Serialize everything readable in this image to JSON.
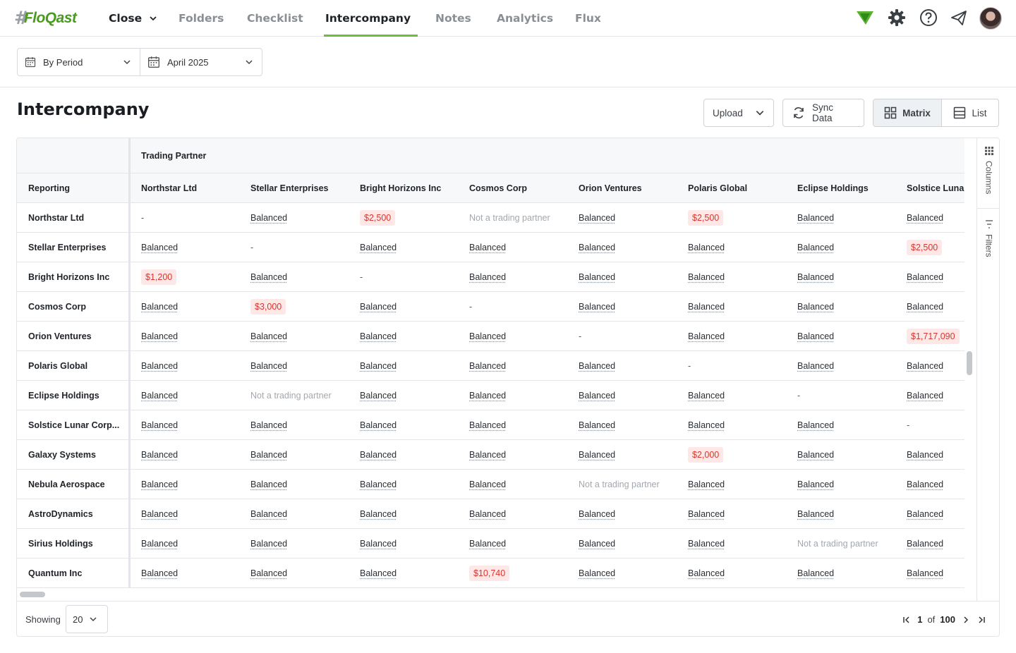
{
  "brand": {
    "hash": "#",
    "name": "FloQast"
  },
  "nav": {
    "tabs": [
      {
        "label": "Close",
        "id": "close"
      },
      {
        "label": "Folders",
        "id": "folders"
      },
      {
        "label": "Checklist",
        "id": "checklist"
      },
      {
        "label": "Intercompany",
        "id": "intercompany"
      },
      {
        "label": "Notes",
        "id": "notes"
      },
      {
        "label": "Analytics",
        "id": "analytics"
      },
      {
        "label": "Flux",
        "id": "flux"
      }
    ],
    "active": "Intercompany",
    "icons": [
      "floqast-ai-icon",
      "gear-icon",
      "help-icon",
      "send-icon",
      "avatar"
    ]
  },
  "filters": {
    "period_type": "By Period",
    "period": "April 2025"
  },
  "page": {
    "title": "Intercompany"
  },
  "toolbar": {
    "upload": "Upload",
    "sync": "Sync Data",
    "matrix": "Matrix",
    "list": "List",
    "active_view": "Matrix"
  },
  "grid": {
    "group_header": "Trading Partner",
    "row_header": "Reporting",
    "columns": [
      "Northstar Ltd",
      "Stellar Enterprises",
      "Bright Horizons Inc",
      "Cosmos Corp",
      "Orion Ventures",
      "Polaris Global",
      "Eclipse Holdings",
      "Solstice Lunar Corp..."
    ],
    "rows": [
      {
        "name": "Northstar Ltd",
        "cells": [
          "-",
          "Balanced",
          "$2,500",
          "Not a trading partner",
          "Balanced",
          "$2,500",
          "Balanced",
          "Balanced"
        ]
      },
      {
        "name": "Stellar Enterprises",
        "cells": [
          "Balanced",
          "-",
          "Balanced",
          "Balanced",
          "Balanced",
          "Balanced",
          "Balanced",
          "$2,500"
        ]
      },
      {
        "name": "Bright Horizons Inc",
        "cells": [
          "$1,200",
          "Balanced",
          "-",
          "Balanced",
          "Balanced",
          "Balanced",
          "Balanced",
          "Balanced"
        ]
      },
      {
        "name": "Cosmos Corp",
        "cells": [
          "Balanced",
          "$3,000",
          "Balanced",
          "-",
          "Balanced",
          "Balanced",
          "Balanced",
          "Balanced"
        ]
      },
      {
        "name": "Orion Ventures",
        "cells": [
          "Balanced",
          "Balanced",
          "Balanced",
          "Balanced",
          "-",
          "Balanced",
          "Balanced",
          "$1,717,090"
        ]
      },
      {
        "name": "Polaris Global",
        "cells": [
          "Balanced",
          "Balanced",
          "Balanced",
          "Balanced",
          "Balanced",
          "-",
          "Balanced",
          "Balanced"
        ]
      },
      {
        "name": "Eclipse Holdings",
        "cells": [
          "Balanced",
          "Not a trading partner",
          "Balanced",
          "Balanced",
          "Balanced",
          "Balanced",
          "-",
          "Balanced"
        ]
      },
      {
        "name": "Solstice Lunar Corp...",
        "cells": [
          "Balanced",
          "Balanced",
          "Balanced",
          "Balanced",
          "Balanced",
          "Balanced",
          "Balanced",
          "-"
        ]
      },
      {
        "name": "Galaxy Systems",
        "cells": [
          "Balanced",
          "Balanced",
          "Balanced",
          "Balanced",
          "Balanced",
          "$2,000",
          "Balanced",
          "Balanced"
        ]
      },
      {
        "name": "Nebula Aerospace",
        "cells": [
          "Balanced",
          "Balanced",
          "Balanced",
          "Balanced",
          "Not a trading partner",
          "Balanced",
          "Balanced",
          "Balanced"
        ]
      },
      {
        "name": "AstroDynamics",
        "cells": [
          "Balanced",
          "Balanced",
          "Balanced",
          "Balanced",
          "Balanced",
          "Balanced",
          "Balanced",
          "Balanced"
        ]
      },
      {
        "name": "Sirius Holdings",
        "cells": [
          "Balanced",
          "Balanced",
          "Balanced",
          "Balanced",
          "Balanced",
          "Balanced",
          "Not a trading partner",
          "Balanced"
        ]
      },
      {
        "name": "Quantum Inc",
        "cells": [
          "Balanced",
          "Balanced",
          "Balanced",
          "$10,740",
          "Balanced",
          "Balanced",
          "Balanced",
          "Balanced"
        ]
      }
    ]
  },
  "side_panel": {
    "columns": "Columns",
    "filters": "Filters"
  },
  "footer": {
    "showing_label": "Showing",
    "page_size": "20",
    "current_page": "1",
    "of_label": "of",
    "total_pages": "100"
  },
  "colors": {
    "accent": "#6dbb3a",
    "brand_green": "#4a9a1f",
    "variance_bg": "#fde8e7",
    "variance_text": "#d9372e"
  }
}
